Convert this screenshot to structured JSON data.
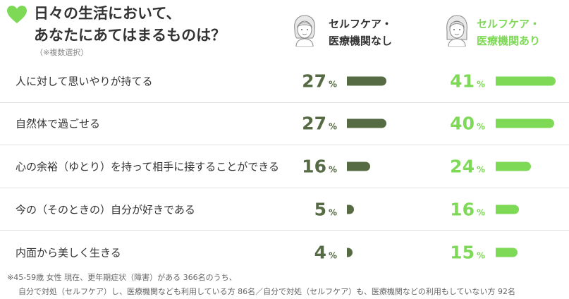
{
  "chart_data": {
    "type": "bar",
    "title_lines": [
      "日々の生活において、",
      "あなたにあてはまるものは？"
    ],
    "subtitle": "（※複数選択）",
    "unit": "%",
    "categories": [
      "人に対して思いやりが持てる",
      "自然体で過ごせる",
      "心の余裕（ゆとり）を持って相手に接することができる",
      "今の（そのときの）自分が好きである",
      "内面から美しく生きる"
    ],
    "series": [
      {
        "label_lines": [
          "セルフケア・",
          "医療機関なし"
        ],
        "values": [
          27,
          27,
          16,
          5,
          4
        ],
        "color": "#566b44"
      },
      {
        "label_lines": [
          "セルフケア・",
          "医療機関あり"
        ],
        "values": [
          41,
          40,
          24,
          16,
          15
        ],
        "color": "#7ed957"
      }
    ],
    "xlim": [
      0,
      41
    ]
  },
  "footnote": {
    "line1": "※45-59歳 女性 現在、更年期症状（障害）がある 366名のうち、",
    "line2": "自分で対処（セルフケア）し、医療機関なども利用している方 86名／自分で対処（セルフケア）も、医療機関などの利用もしていない方 92名"
  },
  "icons": {
    "heart": "heart-icon",
    "avatar_none": "woman-avatar-icon",
    "avatar_with": "woman-avatar-icon"
  },
  "colors": {
    "accent": "#7ed957",
    "dark": "#566b44"
  }
}
